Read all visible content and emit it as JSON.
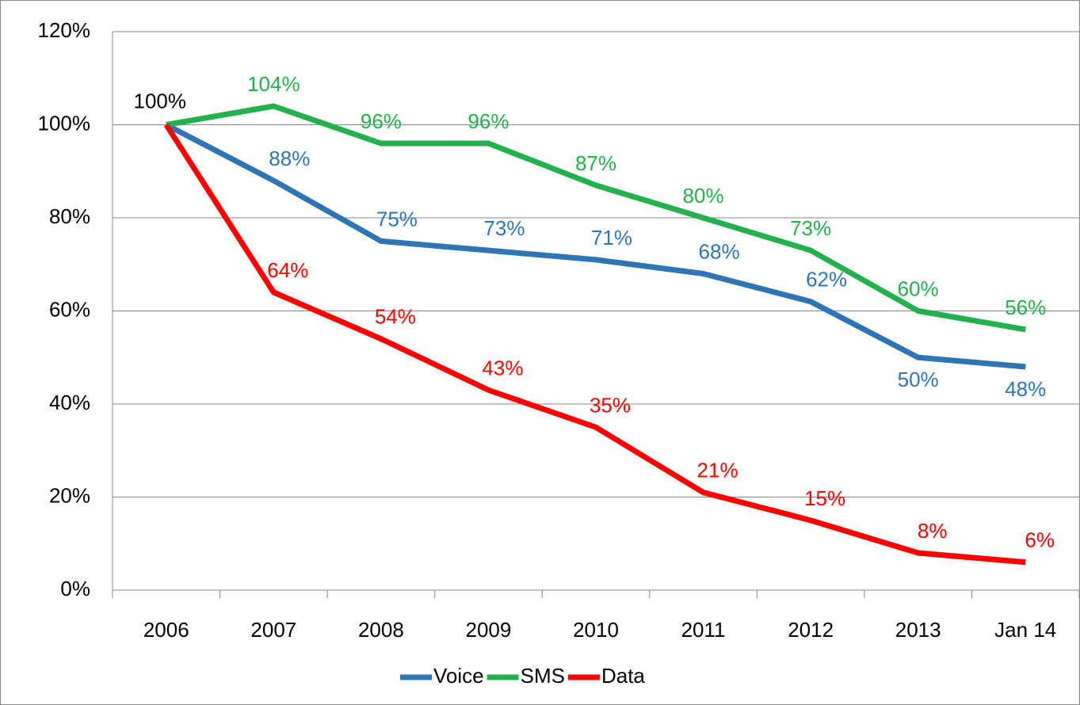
{
  "chart_data": {
    "type": "line",
    "categories": [
      "2006",
      "2007",
      "2008",
      "2009",
      "2010",
      "2011",
      "2012",
      "2013",
      "Jan 14"
    ],
    "series": [
      {
        "name": "Voice",
        "color": "#2e75b6",
        "values": [
          100,
          88,
          75,
          73,
          71,
          68,
          62,
          50,
          48
        ],
        "value_labels": [
          "100%",
          "88%",
          "75%",
          "73%",
          "71%",
          "68%",
          "62%",
          "50%",
          "48%"
        ]
      },
      {
        "name": "SMS",
        "color": "#22b14c",
        "values": [
          100,
          104,
          96,
          96,
          87,
          80,
          73,
          60,
          56
        ],
        "value_labels": [
          null,
          "104%",
          "96%",
          "96%",
          "87%",
          "80%",
          "73%",
          "60%",
          "56%"
        ]
      },
      {
        "name": "Data",
        "color": "#ff0000",
        "values": [
          100,
          64,
          54,
          43,
          35,
          21,
          15,
          8,
          6
        ],
        "value_labels": [
          null,
          "64%",
          "54%",
          "43%",
          "35%",
          "21%",
          "15%",
          "8%",
          "6%"
        ]
      }
    ],
    "ylim": [
      0,
      120
    ],
    "yticks": [
      {
        "value": 0,
        "label": "0%"
      },
      {
        "value": 20,
        "label": "20%"
      },
      {
        "value": 40,
        "label": "40%"
      },
      {
        "value": 60,
        "label": "60%"
      },
      {
        "value": 80,
        "label": "80%"
      },
      {
        "value": 100,
        "label": "100%"
      },
      {
        "value": 120,
        "label": "120%"
      }
    ],
    "grid": true,
    "legend": "bottom"
  }
}
